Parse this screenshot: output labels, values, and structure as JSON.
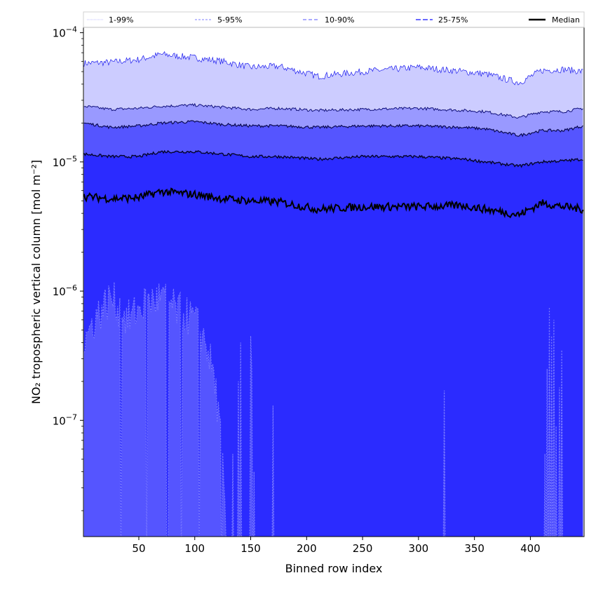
{
  "chart_data": {
    "type": "area",
    "title": "",
    "xlabel": "Binned row index",
    "ylabel": "NO₂ tropospheric vertical column [mol m⁻²]",
    "xlim": [
      0.5,
      448
    ],
    "ylim": [
      1.26e-08,
      0.00011
    ],
    "yscale": "log",
    "grid": false,
    "legend_placement": "top, above plot",
    "x_ticks": [
      50,
      100,
      150,
      200,
      250,
      300,
      350,
      400
    ],
    "x_tick_labels": [
      "50",
      "100",
      "150",
      "200",
      "250",
      "300",
      "350",
      "400"
    ],
    "y_ticks": [
      0.0001,
      1e-05,
      1e-06,
      1e-07
    ],
    "y_tick_labels": [
      {
        "base": "10",
        "exp": "−4"
      },
      {
        "base": "10",
        "exp": "−5"
      },
      {
        "base": "10",
        "exp": "−6"
      },
      {
        "base": "10",
        "exp": "−7"
      }
    ],
    "legend": [
      {
        "label": "1-99%",
        "color": "#ccccff",
        "dash": "1,1"
      },
      {
        "label": "5-95%",
        "color": "#9999ff",
        "dash": "3,2"
      },
      {
        "label": "10-90%",
        "color": "#7777ff",
        "dash": "5,3"
      },
      {
        "label": "25-75%",
        "color": "#5555ff",
        "dash": "7,3"
      },
      {
        "label": "Median",
        "color": "#000000",
        "dash": ""
      }
    ],
    "band_colors": {
      "p1_99": "#ccccff",
      "p5_95": "#9999ff",
      "p10_90": "#5555ff",
      "p25_75": "#2b2bff"
    },
    "anchor_x": [
      1,
      25,
      50,
      70,
      100,
      125,
      150,
      175,
      210,
      250,
      300,
      340,
      360,
      390,
      410,
      430,
      447
    ],
    "series": [
      {
        "name": "p99",
        "values": [
          5.8e-05,
          5.9e-05,
          6.2e-05,
          6.8e-05,
          6.4e-05,
          6e-05,
          5.4e-05,
          5.5e-05,
          4.6e-05,
          5e-05,
          5.4e-05,
          5e-05,
          4.8e-05,
          4.1e-05,
          5.1e-05,
          5.2e-05,
          5e-05
        ]
      },
      {
        "name": "p95",
        "values": [
          2.7e-05,
          2.55e-05,
          2.6e-05,
          2.7e-05,
          2.75e-05,
          2.65e-05,
          2.55e-05,
          2.6e-05,
          2.5e-05,
          2.55e-05,
          2.6e-05,
          2.5e-05,
          2.45e-05,
          2.2e-05,
          2.45e-05,
          2.45e-05,
          2.6e-05
        ]
      },
      {
        "name": "p90",
        "values": [
          2e-05,
          1.85e-05,
          1.9e-05,
          2e-05,
          2.05e-05,
          1.95e-05,
          1.9e-05,
          1.9e-05,
          1.85e-05,
          1.9e-05,
          1.9e-05,
          1.85e-05,
          1.8e-05,
          1.6e-05,
          1.75e-05,
          1.75e-05,
          1.9e-05
        ]
      },
      {
        "name": "p75",
        "values": [
          1.15e-05,
          1.1e-05,
          1.1e-05,
          1.2e-05,
          1.2e-05,
          1.15e-05,
          1.1e-05,
          1.1e-05,
          1.05e-05,
          1.1e-05,
          1.1e-05,
          1.05e-05,
          1e-05,
          9.3e-06,
          1e-05,
          1.02e-05,
          1.05e-05
        ]
      },
      {
        "name": "Median",
        "values": [
          5.4e-06,
          5.2e-06,
          5.3e-06,
          5.9e-06,
          5.6e-06,
          5.2e-06,
          5e-06,
          4.9e-06,
          4.3e-06,
          4.5e-06,
          4.5e-06,
          4.6e-06,
          4.3e-06,
          3.9e-06,
          4.8e-06,
          4.5e-06,
          4.3e-06
        ]
      },
      {
        "name": "p25",
        "anchor_x": [
          1,
          10,
          25,
          40,
          55,
          70,
          85,
          100,
          110,
          118,
          124,
          128
        ],
        "values": [
          4e-07,
          6e-07,
          9e-07,
          6e-07,
          8e-07,
          9e-07,
          7e-07,
          6e-07,
          4e-07,
          2e-07,
          6e-08,
          1.3e-08
        ]
      }
    ],
    "p25_isolated_spikes": [
      [
        134,
        5.5e-08
      ],
      [
        139,
        2e-07
      ],
      [
        141,
        4e-07
      ],
      [
        150,
        4.5e-07
      ],
      [
        151,
        2.5e-07
      ],
      [
        153,
        4e-08
      ],
      [
        170,
        1.3e-07
      ],
      [
        323,
        1.7e-07
      ],
      [
        413,
        5.5e-08
      ],
      [
        415,
        2.5e-07
      ],
      [
        417,
        7.5e-07
      ],
      [
        419,
        4.5e-07
      ],
      [
        421,
        6e-07
      ],
      [
        423,
        9e-08
      ],
      [
        426,
        1.8e-07
      ],
      [
        428,
        3.5e-07
      ]
    ]
  }
}
